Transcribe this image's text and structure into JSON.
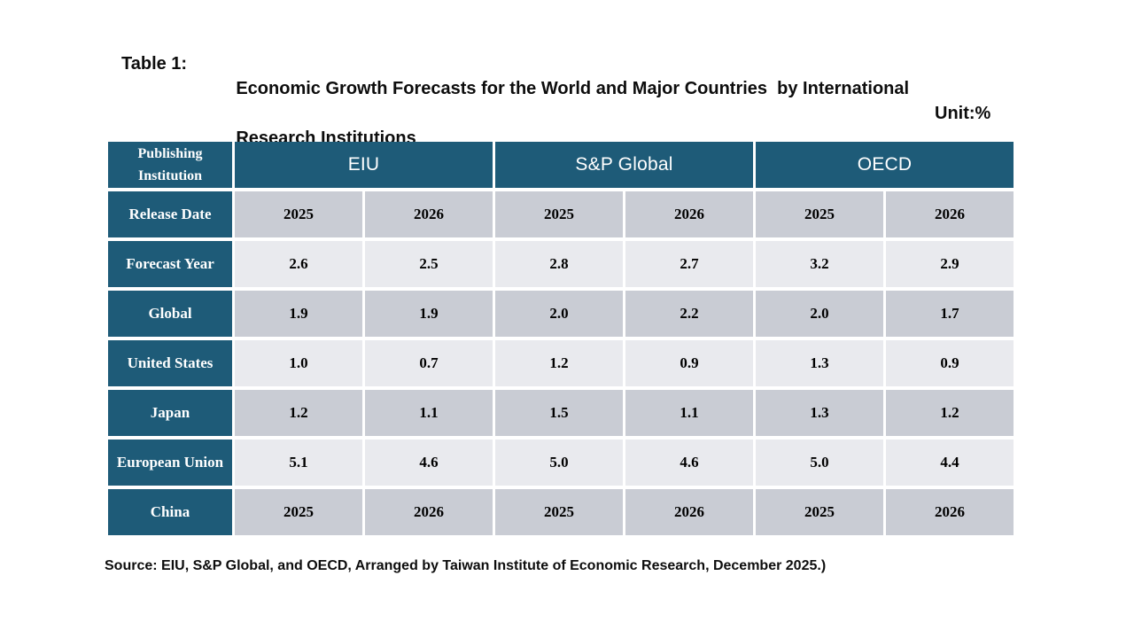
{
  "title": {
    "label": "Table 1:",
    "line1": "Economic Growth Forecasts for the World and Major Countries  by International",
    "line2": "Research Institutions",
    "unit": "Unit:%"
  },
  "table": {
    "corner_header": "Publishing Institution",
    "institutions": [
      {
        "name": "EIU"
      },
      {
        "name": "S&P Global"
      },
      {
        "name": "OECD"
      }
    ],
    "rows": [
      {
        "label": "Release Date",
        "values": [
          "2025",
          "2026",
          "2025",
          "2026",
          "2025",
          "2026"
        ]
      },
      {
        "label": "Forecast Year",
        "values": [
          "2.6",
          "2.5",
          "2.8",
          "2.7",
          "3.2",
          "2.9"
        ]
      },
      {
        "label": "Global",
        "values": [
          "1.9",
          "1.9",
          "2.0",
          "2.2",
          "2.0",
          "1.7"
        ]
      },
      {
        "label": "United States",
        "values": [
          "1.0",
          "0.7",
          "1.2",
          "0.9",
          "1.3",
          "0.9"
        ]
      },
      {
        "label": "Japan",
        "values": [
          "1.2",
          "1.1",
          "1.5",
          "1.1",
          "1.3",
          "1.2"
        ]
      },
      {
        "label": "European Union",
        "values": [
          "5.1",
          "4.6",
          "5.0",
          "4.6",
          "5.0",
          "4.4"
        ]
      },
      {
        "label": "China",
        "values": [
          "2025",
          "2026",
          "2025",
          "2026",
          "2025",
          "2026"
        ]
      }
    ]
  },
  "source": "Source: EIU, S&P Global, and OECD, Arranged by Taiwan Institute of Economic Research, December 2025.)",
  "colors": {
    "header_teal": "#1e5b78",
    "row_dark": "#c9ccd4",
    "row_light": "#e9eaee"
  }
}
